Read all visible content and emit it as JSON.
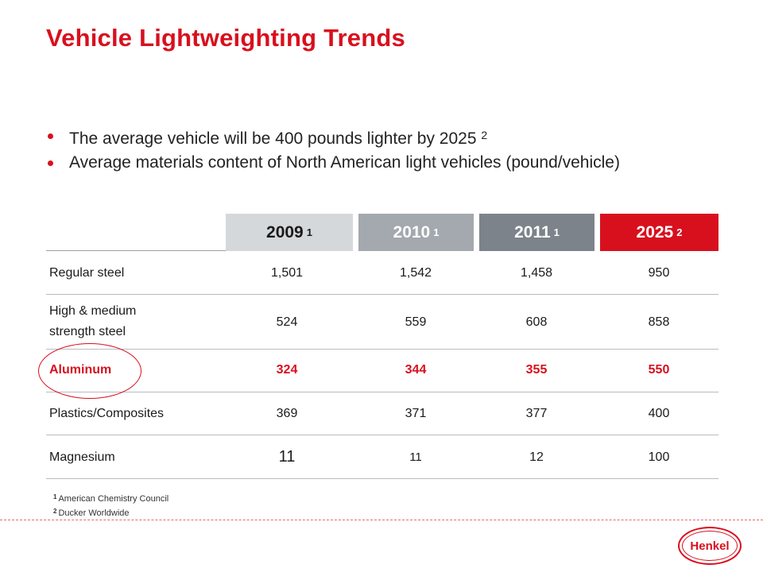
{
  "title": "Vehicle Lightweighting Trends",
  "bullets": [
    {
      "text": "The average vehicle will be 400 pounds lighter by 2025",
      "ref": "2"
    },
    {
      "text": "Average materials content of North American light vehicles (pound/vehicle)",
      "ref": ""
    }
  ],
  "table": {
    "headers": [
      {
        "year": "2009",
        "ref": "1"
      },
      {
        "year": "2010",
        "ref": "1"
      },
      {
        "year": "2011",
        "ref": "1"
      },
      {
        "year": "2025",
        "ref": "2"
      }
    ],
    "rows": [
      {
        "label": "Regular steel",
        "values": [
          "1,501",
          "1,542",
          "1,458",
          "950"
        ]
      },
      {
        "label_line1": "High & medium",
        "label_line2": "strength steel",
        "values": [
          "524",
          "559",
          "608",
          "858"
        ]
      },
      {
        "label": "Aluminum",
        "values": [
          "324",
          "344",
          "355",
          "550"
        ],
        "highlight": true
      },
      {
        "label": "Plastics/Composites",
        "values": [
          "369",
          "371",
          "377",
          "400"
        ]
      },
      {
        "label": "Magnesium",
        "values": [
          "11",
          "11",
          "12",
          "100"
        ]
      }
    ]
  },
  "footnotes": [
    {
      "num": "1",
      "text": "American Chemistry Council"
    },
    {
      "num": "2",
      "text": "Ducker Worldwide"
    }
  ],
  "logo": {
    "text": "Henkel"
  },
  "colors": {
    "accent": "#d8101e",
    "header_2009": "#d4d8db",
    "header_2010": "#a3a9ae",
    "header_2011": "#7c838a",
    "header_2025": "#d8101e"
  }
}
